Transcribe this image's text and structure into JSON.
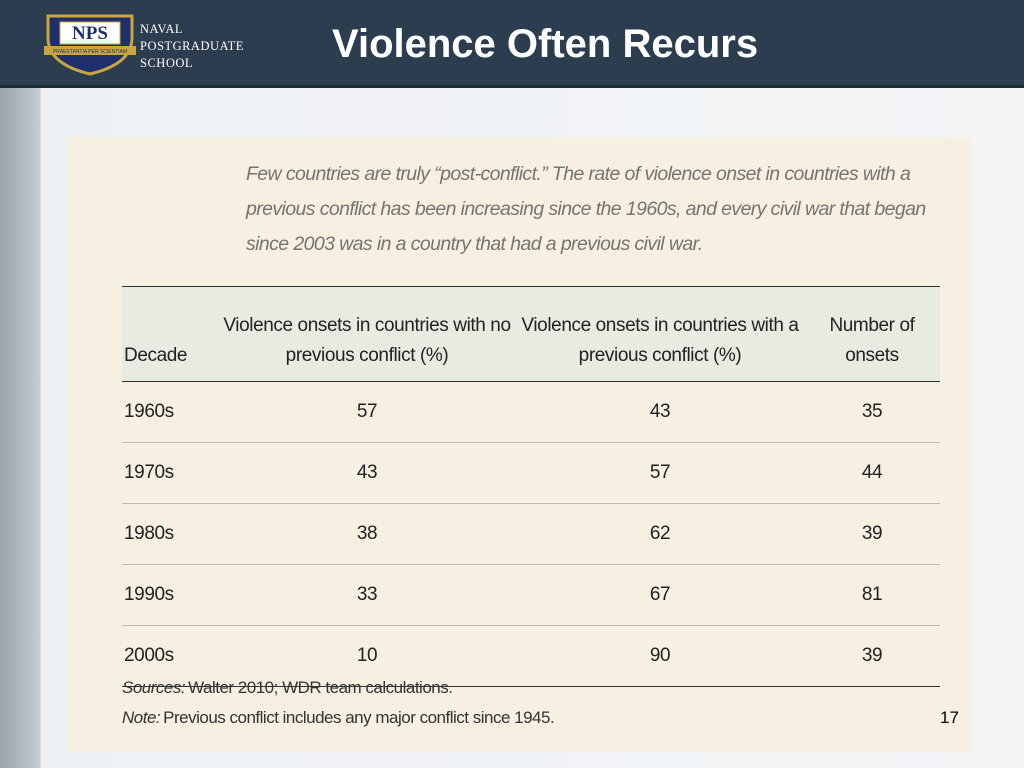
{
  "header": {
    "logo": {
      "mark": "NPS",
      "motto": "PRAESTANTIA PER SCIENTIAM",
      "lines": [
        "NAVAL",
        "POSTGRADUATE",
        "SCHOOL"
      ]
    },
    "title": "Violence Often Recurs"
  },
  "intro": "Few countries are truly “post-conflict.” The rate of violence onset in countries with a previous conflict has been increasing since the 1960s, and every civil war that began since 2003 was in a country that had a previous civil war.",
  "table": {
    "columns": [
      "Decade",
      "Violence onsets in countries with no previous conflict (%)",
      "Violence onsets in countries with a previous conflict (%)",
      "Number of onsets"
    ],
    "rows": [
      [
        "1960s",
        57,
        43,
        35
      ],
      [
        "1970s",
        43,
        57,
        44
      ],
      [
        "1980s",
        38,
        62,
        39
      ],
      [
        "1990s",
        33,
        67,
        81
      ],
      [
        "2000s",
        10,
        90,
        39
      ]
    ]
  },
  "sources": {
    "label": "Sources:",
    "text": "Walter 2010; WDR team calculations."
  },
  "note": {
    "label": "Note:",
    "text": "Previous conflict includes any major conflict since 1945."
  },
  "page_number": "17"
}
